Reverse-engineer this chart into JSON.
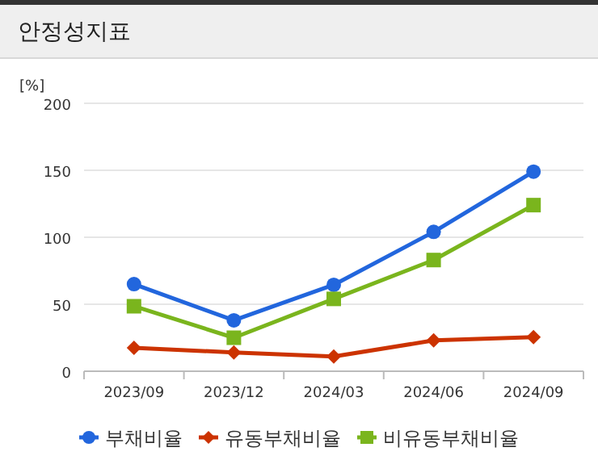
{
  "chart_data": {
    "type": "line",
    "title": "안정성지표",
    "ylabel": "[%]",
    "categories": [
      "2023/09",
      "2023/12",
      "2024/03",
      "2024/06",
      "2024/09"
    ],
    "series": [
      {
        "name": "부채비율",
        "color": "#2266dd",
        "marker": "circle",
        "values": [
          65,
          38,
          64.5,
          104,
          149
        ]
      },
      {
        "name": "유동부채비율",
        "color": "#cc3300",
        "marker": "diamond",
        "values": [
          17.5,
          14,
          11,
          23,
          25.5
        ]
      },
      {
        "name": "비유동부채비율",
        "color": "#7ab51d",
        "marker": "square",
        "values": [
          48.5,
          25,
          54,
          83,
          124
        ]
      }
    ],
    "ylim": [
      0,
      200
    ],
    "yticks": [
      0,
      50,
      100,
      150,
      200
    ],
    "grid": "y",
    "legend": "bottom"
  }
}
